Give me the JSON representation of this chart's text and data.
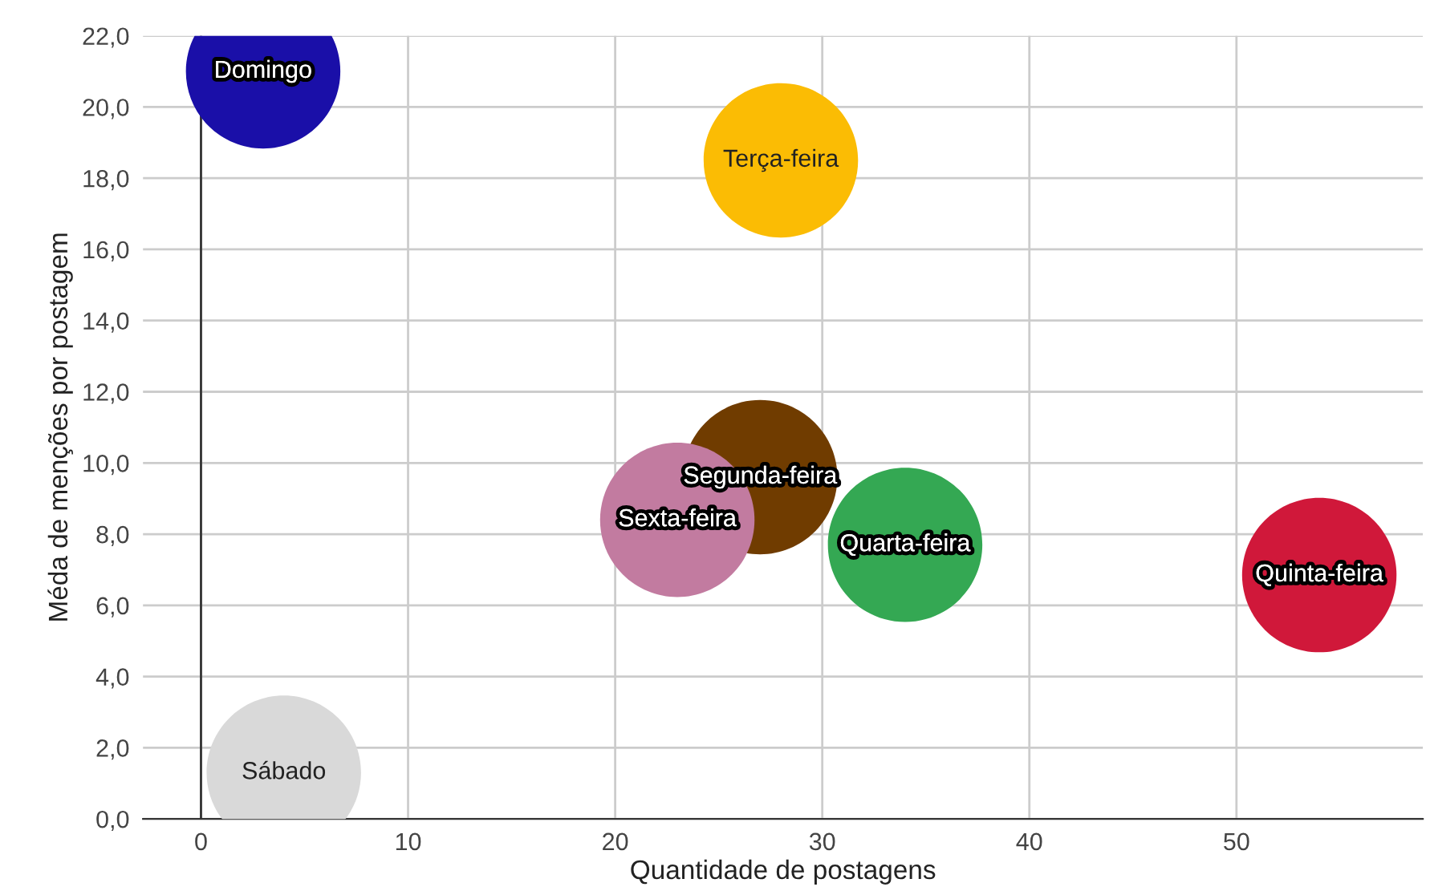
{
  "chart_data": {
    "type": "bubble",
    "xlabel": "Quantidade de postagens",
    "ylabel": "Méda de menções por postagem",
    "xlim": [
      -2.8,
      59
    ],
    "xticks": [
      0,
      10,
      20,
      30,
      40,
      50
    ],
    "ylim": [
      0,
      22
    ],
    "yticks": [
      {
        "value": 0,
        "label": "0,0"
      },
      {
        "value": 2,
        "label": "2,0"
      },
      {
        "value": 4,
        "label": "4,0"
      },
      {
        "value": 6,
        "label": "6,0"
      },
      {
        "value": 8,
        "label": "8,0"
      },
      {
        "value": 10,
        "label": "10,0"
      },
      {
        "value": 12,
        "label": "12,0"
      },
      {
        "value": 14,
        "label": "14,0"
      },
      {
        "value": 16,
        "label": "16,0"
      },
      {
        "value": 18,
        "label": "18,0"
      },
      {
        "value": 20,
        "label": "20,0"
      },
      {
        "value": 22,
        "label": "22,0"
      }
    ],
    "grid": true,
    "legend": false,
    "series": [
      {
        "name": "Domingo",
        "color": "#1a0fa8",
        "x": [
          3
        ],
        "values": [
          21.0
        ],
        "sizes": [
          1
        ]
      },
      {
        "name": "Terça-feira",
        "color": "#fbbc04",
        "x": [
          28
        ],
        "values": [
          18.5
        ],
        "sizes": [
          1
        ]
      },
      {
        "name": "Segunda-feira",
        "color": "#703c00",
        "x": [
          27
        ],
        "values": [
          9.6
        ],
        "sizes": [
          1
        ]
      },
      {
        "name": "Sexta-feira",
        "color": "#c27ba0",
        "x": [
          23
        ],
        "values": [
          8.4
        ],
        "sizes": [
          1
        ]
      },
      {
        "name": "Quarta-feira",
        "color": "#34a853",
        "x": [
          34
        ],
        "values": [
          7.7
        ],
        "sizes": [
          1
        ]
      },
      {
        "name": "Quinta-feira",
        "color": "#d0183a",
        "x": [
          54
        ],
        "values": [
          6.85
        ],
        "sizes": [
          1
        ]
      },
      {
        "name": "Sábado",
        "color": "#d9d9d9",
        "x": [
          4
        ],
        "values": [
          1.3
        ],
        "sizes": [
          1
        ]
      }
    ]
  }
}
